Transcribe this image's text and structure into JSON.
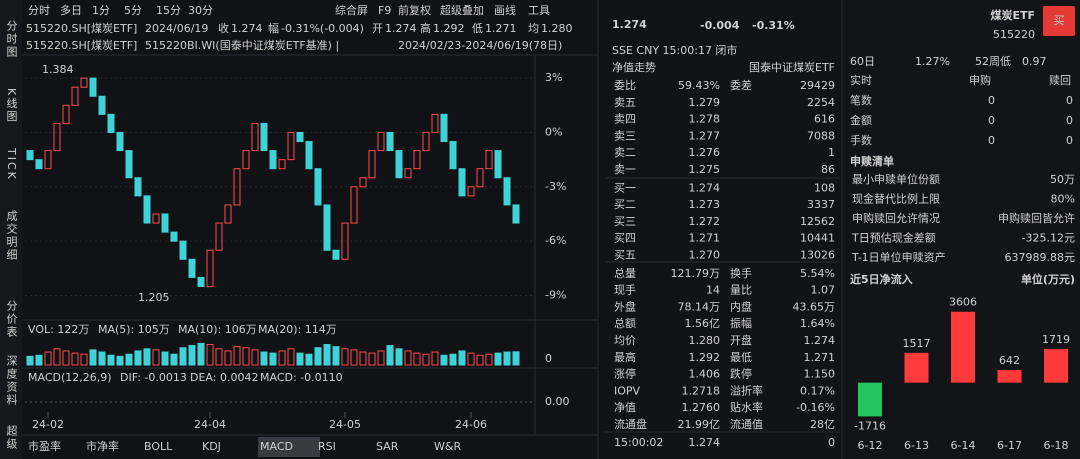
{
  "toolbar": {
    "periods": [
      "分时",
      "多日",
      "1分",
      "5分",
      "15分",
      "30分"
    ],
    "tools": [
      "综合屏",
      "F9",
      "前复权",
      "超级叠加",
      "画线",
      "工具"
    ]
  },
  "quote_line": {
    "symbol": "515220.SH[煤炭ETF]",
    "date": "2024/06/19",
    "items": [
      [
        "收",
        "1.274"
      ],
      [
        "幅",
        "-0.31%(-0.004)"
      ],
      [
        "开",
        "1.274"
      ],
      [
        "高",
        "1.292"
      ],
      [
        "低",
        "1.271"
      ],
      [
        "均",
        "1.280"
      ]
    ]
  },
  "overlay_line": {
    "symbol": "515220.SH[煤炭ETF]",
    "index": "515220BI.WI(国泰中证煤炭ETF基准) |",
    "range": "2024/02/23-2024/06/19(78日)"
  },
  "side_tabs": [
    "分时图",
    "K线图",
    "TICK",
    "成交明细",
    "分价表",
    "深度资料",
    "超级"
  ],
  "indicator_tabs": [
    "市盈率",
    "市净率",
    "BOLL",
    "KDJ",
    "MACD",
    "RSI",
    "SAR",
    "W&R"
  ],
  "vol_line": [
    "VOL: 122万",
    "MA(5): 105万",
    "MA(10): 106万",
    "MA(20): 114万"
  ],
  "macd_line": [
    "MACD(12,26,9)",
    "DIF: -0.0013",
    "DEA: 0.0042",
    "MACD: -0.0110"
  ],
  "chart_data": [
    {
      "type": "candlestick",
      "open": [
        -1,
        -1.5,
        -2,
        -1,
        0.5,
        1.5,
        2.5,
        3,
        2,
        1,
        0,
        -1,
        -2.5,
        -3.5,
        -5,
        -4.5,
        -5.5,
        -6,
        -7,
        -8,
        -8.5,
        -6.5,
        -5,
        -4,
        -2,
        -1,
        0.5,
        -1,
        -2,
        -1.5,
        0,
        -0.5,
        -2,
        -4,
        -6.5,
        -7,
        -5,
        -3,
        -2.5,
        -1,
        0,
        -1,
        -2.5,
        -2,
        -1,
        0,
        1,
        -0.5,
        -2,
        -3.5,
        -3,
        -2,
        -1,
        -2.5,
        -4
      ],
      "close": [
        -1.5,
        -2,
        -1,
        0.5,
        1.5,
        2.5,
        3,
        2,
        1,
        0,
        -1,
        -2.5,
        -3.5,
        -5,
        -4.5,
        -5.5,
        -6,
        -7,
        -8,
        -8.5,
        -6.5,
        -5,
        -4,
        -2,
        -1,
        0.5,
        -1,
        -2,
        -1.5,
        0,
        -0.5,
        -2,
        -4,
        -6.5,
        -7,
        -5,
        -3,
        -2.5,
        -1,
        0,
        -1,
        -2.5,
        -2,
        -1,
        0,
        1,
        -0.5,
        -2,
        -3.5,
        -3,
        -2,
        -1,
        -2.5,
        -4,
        -5
      ],
      "volume": [
        80,
        90,
        120,
        150,
        130,
        110,
        100,
        140,
        120,
        90,
        80,
        100,
        130,
        150,
        140,
        120,
        100,
        160,
        180,
        200,
        190,
        150,
        130,
        170,
        160,
        140,
        120,
        110,
        130,
        150,
        110,
        100,
        160,
        190,
        170,
        150,
        140,
        120,
        110,
        130,
        180,
        150,
        130,
        110,
        100,
        120,
        90,
        100,
        130,
        110,
        90,
        100,
        110,
        120,
        122
      ],
      "up_color": "#ff4a4a",
      "down_color": "#3fd3d8",
      "ylim": [
        -9.8,
        4
      ],
      "yticks": [
        {
          "value": 3,
          "label": "3%"
        },
        {
          "value": 0,
          "label": "0%"
        },
        {
          "value": -3,
          "label": "-3%"
        },
        {
          "value": -6,
          "label": "-6%"
        },
        {
          "value": -9,
          "label": "-9%"
        }
      ],
      "volume_ylim": [
        0,
        250
      ],
      "volume_yticks": [
        0
      ],
      "macd_ytick": "0.00",
      "xticks": [
        {
          "value": 2,
          "label": "24-02"
        },
        {
          "value": 20,
          "label": "24-04"
        },
        {
          "value": 35,
          "label": "24-05"
        },
        {
          "value": 49,
          "label": "24-06"
        }
      ],
      "annotations": [
        "1.384",
        "1.205"
      ]
    },
    {
      "type": "bar",
      "title": "近5日净流入",
      "unit": "单位(万元)",
      "categories": [
        "6-12",
        "6-13",
        "6-14",
        "6-17",
        "6-18"
      ],
      "values": [
        -1716,
        1517,
        3606,
        642,
        1719
      ],
      "positive_color": "#ff3a3a",
      "negative_color": "#22c55e",
      "ylim": [
        -2000,
        4000
      ]
    }
  ],
  "quote_panel": {
    "price": "1.274",
    "change": "-0.004",
    "change_pct": "-0.31%",
    "status": "SSE  CNY  15:00:17  闭市",
    "nav_title": "净值走势",
    "nav_index": "国泰中证煤炭ETF",
    "rows": [
      {
        "cells": [
          "委比",
          "59.43%",
          "委差",
          "29429"
        ],
        "colors": [
          "#ccc",
          "#ff4a4a",
          "#ccc",
          "#ff4a4a"
        ]
      },
      {
        "cells": [
          "卖五",
          "1.279",
          "2254"
        ],
        "colors": [
          "#ccc",
          "#ff4a4a",
          "#ddd"
        ]
      },
      {
        "cells": [
          "卖四",
          "1.278",
          "616"
        ],
        "colors": [
          "#ccc",
          "#ddd",
          "#ddd"
        ]
      },
      {
        "cells": [
          "卖三",
          "1.277",
          "7088"
        ],
        "colors": [
          "#ccc",
          "#2ecc71",
          "#ddd"
        ]
      },
      {
        "cells": [
          "卖二",
          "1.276",
          "1"
        ],
        "colors": [
          "#ccc",
          "#2ecc71",
          "#ddd"
        ]
      },
      {
        "cells": [
          "卖一",
          "1.275",
          "86"
        ],
        "colors": [
          "#ccc",
          "#2ecc71",
          "#ddd"
        ]
      },
      {
        "cells": [
          "买一",
          "1.274",
          "108"
        ],
        "colors": [
          "#ccc",
          "#2ecc71",
          "#ddd"
        ]
      },
      {
        "cells": [
          "买二",
          "1.273",
          "3337"
        ],
        "colors": [
          "#ccc",
          "#2ecc71",
          "#ddd"
        ]
      },
      {
        "cells": [
          "买三",
          "1.272",
          "12562"
        ],
        "colors": [
          "#ccc",
          "#2ecc71",
          "#ddd"
        ]
      },
      {
        "cells": [
          "买四",
          "1.271",
          "10441"
        ],
        "colors": [
          "#ccc",
          "#2ecc71",
          "#ddd"
        ]
      },
      {
        "cells": [
          "买五",
          "1.270",
          "13026"
        ],
        "colors": [
          "#ccc",
          "#2ecc71",
          "#ddd"
        ]
      },
      {
        "cells": [
          "总量",
          "121.79万",
          "换手",
          "5.54%"
        ],
        "colors": [
          "#ccc",
          "#ddd",
          "#ccc",
          "#ddd"
        ]
      },
      {
        "cells": [
          "现手",
          "14",
          "量比",
          "1.07"
        ],
        "colors": [
          "#ccc",
          "#ddd",
          "#ccc",
          "#ddd"
        ]
      },
      {
        "cells": [
          "外盘",
          "78.14万",
          "内盘",
          "43.65万"
        ],
        "colors": [
          "#ccc",
          "#ff4a4a",
          "#ccc",
          "#2ecc71"
        ]
      },
      {
        "cells": [
          "总额",
          "1.56亿",
          "振幅",
          "1.64%"
        ],
        "colors": [
          "#ccc",
          "#ddd",
          "#ccc",
          "#ddd"
        ]
      },
      {
        "cells": [
          "均价",
          "1.280",
          "开盘",
          "1.274"
        ],
        "colors": [
          "#ccc",
          "#ff4a4a",
          "#ccc",
          "#2ecc71"
        ]
      },
      {
        "cells": [
          "最高",
          "1.292",
          "最低",
          "1.271"
        ],
        "colors": [
          "#ccc",
          "#ff4a4a",
          "#ccc",
          "#2ecc71"
        ]
      },
      {
        "cells": [
          "涨停",
          "1.406",
          "跌停",
          "1.150"
        ],
        "colors": [
          "#ccc",
          "#ff4a4a",
          "#ccc",
          "#2ecc71"
        ]
      },
      {
        "cells": [
          "IOPV",
          "1.2718",
          "溢折率",
          "0.17%"
        ],
        "colors": [
          "#ccc",
          "#ddd",
          "#ccc",
          "#ff4a4a"
        ]
      },
      {
        "cells": [
          "净值",
          "1.2760",
          "贴水率",
          "-0.16%"
        ],
        "colors": [
          "#ccc",
          "#ff4a4a",
          "#ccc",
          "#2ecc71"
        ]
      },
      {
        "cells": [
          "流通盘",
          "21.99亿",
          "流通值",
          "28亿"
        ],
        "colors": [
          "#ccc",
          "#ddd",
          "#ccc",
          "#ddd"
        ]
      }
    ],
    "last_trade": [
      "15:00:02",
      "1.274",
      "0"
    ]
  },
  "info_panel": {
    "name": "煤炭ETF",
    "code": "515220",
    "buy": "买",
    "cut_line": [
      "60日",
      "1.27%",
      "52周低",
      "0.97"
    ],
    "header": [
      "实时",
      "申购",
      "赎回"
    ],
    "rows": [
      [
        "笔数",
        "0",
        "0"
      ],
      [
        "金额",
        "0",
        "0"
      ],
      [
        "手数",
        "0",
        "0"
      ]
    ],
    "list_title": "申赎清单",
    "list": [
      [
        "最小申赎单位份额",
        "50万"
      ],
      [
        "现金替代比例上限",
        "80%"
      ],
      [
        "申购赎回允许情况",
        "申购赎回皆允许"
      ],
      [
        "T日预估现金差额",
        "-325.12元"
      ],
      [
        "T-1日单位申赎资产",
        "637989.88元"
      ]
    ]
  }
}
